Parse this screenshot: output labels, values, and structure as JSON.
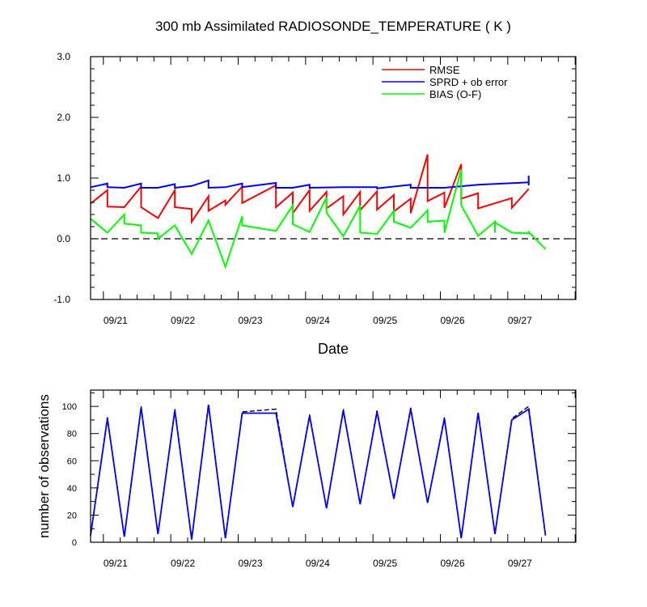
{
  "chart_data": [
    {
      "type": "line",
      "title": "300 mb Assimilated RADIOSONDE_TEMPERATURE ( K )",
      "xlabel": "Date",
      "ylabel": "",
      "ylim": [
        -1.0,
        3.0
      ],
      "xlim": [
        0,
        7.2
      ],
      "x_tick_labels": [
        "09/21",
        "09/22",
        "09/23",
        "09/24",
        "09/25",
        "09/26",
        "09/27"
      ],
      "y_tick_labels": [
        "3.0",
        "2.0",
        "1.0",
        "0.0",
        "-1.0"
      ],
      "legend": "top-right",
      "zero_line": true,
      "series": [
        {
          "name": "RMSE",
          "color": "#ff0000",
          "points": [
            [
              0,
              0.58
            ],
            [
              0.25,
              0.8
            ],
            [
              0.25,
              0.53
            ],
            [
              0.5,
              0.52
            ],
            [
              0.75,
              0.86
            ],
            [
              0.75,
              0.52
            ],
            [
              1.0,
              0.34
            ],
            [
              1.25,
              0.8
            ],
            [
              1.25,
              0.52
            ],
            [
              1.5,
              0.49
            ],
            [
              1.5,
              0.28
            ],
            [
              1.75,
              0.7
            ],
            [
              1.75,
              0.46
            ],
            [
              2.0,
              0.63
            ],
            [
              2.0,
              0.56
            ],
            [
              2.25,
              0.86
            ],
            [
              2.25,
              0.59
            ],
            [
              2.75,
              0.88
            ],
            [
              2.75,
              0.52
            ],
            [
              3.0,
              0.76
            ],
            [
              3.0,
              0.42
            ],
            [
              3.25,
              0.8
            ],
            [
              3.25,
              0.46
            ],
            [
              3.5,
              0.77
            ],
            [
              3.5,
              0.5
            ],
            [
              3.75,
              0.7
            ],
            [
              3.75,
              0.4
            ],
            [
              4.0,
              0.77
            ],
            [
              4.0,
              0.47
            ],
            [
              4.25,
              0.78
            ],
            [
              4.25,
              0.48
            ],
            [
              4.5,
              0.72
            ],
            [
              4.5,
              0.45
            ],
            [
              4.75,
              0.66
            ],
            [
              4.75,
              0.42
            ],
            [
              5.0,
              1.39
            ],
            [
              5.0,
              0.62
            ],
            [
              5.25,
              0.76
            ],
            [
              5.25,
              0.51
            ],
            [
              5.5,
              1.23
            ],
            [
              5.5,
              0.66
            ],
            [
              5.75,
              0.75
            ],
            [
              5.75,
              0.5
            ],
            [
              6.25,
              0.67
            ],
            [
              6.25,
              0.51
            ],
            [
              6.5,
              0.82
            ]
          ]
        },
        {
          "name": "SPRD + ob error",
          "color": "#0000ff",
          "points": [
            [
              0,
              0.85
            ],
            [
              0.25,
              0.91
            ],
            [
              0.25,
              0.85
            ],
            [
              0.5,
              0.84
            ],
            [
              0.75,
              0.91
            ],
            [
              0.75,
              0.84
            ],
            [
              1.0,
              0.84
            ],
            [
              1.25,
              0.9
            ],
            [
              1.25,
              0.84
            ],
            [
              1.5,
              0.87
            ],
            [
              1.75,
              0.96
            ],
            [
              1.75,
              0.84
            ],
            [
              2.0,
              0.85
            ],
            [
              2.25,
              0.91
            ],
            [
              2.25,
              0.85
            ],
            [
              2.75,
              0.92
            ],
            [
              2.75,
              0.84
            ],
            [
              3.0,
              0.84
            ],
            [
              3.25,
              0.89
            ],
            [
              3.25,
              0.84
            ],
            [
              3.75,
              0.85
            ],
            [
              4.25,
              0.85
            ],
            [
              4.25,
              0.83
            ],
            [
              4.75,
              0.89
            ],
            [
              4.75,
              0.84
            ],
            [
              5.25,
              0.84
            ],
            [
              5.75,
              0.89
            ],
            [
              6.5,
              0.93
            ],
            [
              6.5,
              0.88
            ],
            [
              6.5,
              1.04
            ]
          ]
        },
        {
          "name": "BIAS (O-F)",
          "color": "#00ff00",
          "points": [
            [
              0,
              0.33
            ],
            [
              0.25,
              0.1
            ],
            [
              0.5,
              0.4
            ],
            [
              0.5,
              0.25
            ],
            [
              0.75,
              0.22
            ],
            [
              0.75,
              0.1
            ],
            [
              1.0,
              0.09
            ],
            [
              1.0,
              0.0
            ],
            [
              1.25,
              0.22
            ],
            [
              1.5,
              -0.25
            ],
            [
              1.75,
              0.3
            ],
            [
              2.0,
              -0.46
            ],
            [
              2.25,
              0.37
            ],
            [
              2.25,
              0.22
            ],
            [
              2.75,
              0.13
            ],
            [
              3.0,
              0.55
            ],
            [
              3.0,
              0.24
            ],
            [
              3.25,
              0.11
            ],
            [
              3.5,
              0.68
            ],
            [
              3.5,
              0.43
            ],
            [
              3.75,
              0.04
            ],
            [
              4.0,
              0.55
            ],
            [
              4.0,
              0.1
            ],
            [
              4.25,
              0.08
            ],
            [
              4.5,
              0.46
            ],
            [
              4.5,
              0.28
            ],
            [
              4.75,
              0.18
            ],
            [
              5.0,
              0.47
            ],
            [
              5.0,
              0.28
            ],
            [
              5.25,
              0.3
            ],
            [
              5.25,
              0.1
            ],
            [
              5.5,
              1.14
            ],
            [
              5.5,
              0.55
            ],
            [
              5.75,
              0.05
            ],
            [
              6.0,
              0.28
            ],
            [
              6.0,
              0.1
            ],
            [
              6.0,
              0.27
            ],
            [
              6.25,
              0.1
            ],
            [
              6.5,
              0.09
            ],
            [
              6.5,
              0.11
            ],
            [
              6.75,
              -0.17
            ]
          ]
        }
      ]
    },
    {
      "type": "line",
      "title": "",
      "xlabel": "",
      "ylabel": "number of observations",
      "ylim": [
        0,
        112
      ],
      "xlim": [
        0,
        7.2
      ],
      "x_tick_labels": [
        "09/21",
        "09/22",
        "09/23",
        "09/24",
        "09/25",
        "09/26",
        "09/27"
      ],
      "y_tick_labels": [
        "0",
        "20",
        "40",
        "60",
        "80",
        "100"
      ],
      "series": [
        {
          "name": "",
          "color": "#000000",
          "dashed": true,
          "points": [
            [
              0,
              5
            ],
            [
              0.25,
              92
            ],
            [
              0.5,
              4
            ],
            [
              0.75,
              100
            ],
            [
              1.0,
              6
            ],
            [
              1.25,
              98
            ],
            [
              1.5,
              2
            ],
            [
              1.75,
              102
            ],
            [
              2.0,
              3
            ],
            [
              2.25,
              96
            ],
            [
              2.75,
              98
            ],
            [
              3.0,
              26
            ],
            [
              3.25,
              94
            ],
            [
              3.5,
              25
            ],
            [
              3.75,
              98
            ],
            [
              4.0,
              28
            ],
            [
              4.25,
              97
            ],
            [
              4.5,
              32
            ],
            [
              4.75,
              99
            ],
            [
              5.0,
              29
            ],
            [
              5.25,
              92
            ],
            [
              5.5,
              3
            ],
            [
              5.75,
              96
            ],
            [
              6.0,
              6
            ],
            [
              6.25,
              91
            ],
            [
              6.5,
              100
            ],
            [
              6.75,
              5
            ]
          ]
        },
        {
          "name": "",
          "color": "#0000ff",
          "dashed": false,
          "points": [
            [
              0,
              5
            ],
            [
              0.25,
              91
            ],
            [
              0.5,
              4
            ],
            [
              0.75,
              99
            ],
            [
              1.0,
              6
            ],
            [
              1.25,
              97
            ],
            [
              1.5,
              2
            ],
            [
              1.75,
              101
            ],
            [
              2.0,
              3
            ],
            [
              2.25,
              95
            ],
            [
              2.75,
              95
            ],
            [
              3.0,
              26
            ],
            [
              3.25,
              93
            ],
            [
              3.5,
              25
            ],
            [
              3.75,
              97
            ],
            [
              4.0,
              28
            ],
            [
              4.25,
              96
            ],
            [
              4.5,
              32
            ],
            [
              4.75,
              98
            ],
            [
              5.0,
              29
            ],
            [
              5.25,
              91
            ],
            [
              5.5,
              3
            ],
            [
              5.75,
              95
            ],
            [
              6.0,
              6
            ],
            [
              6.25,
              90
            ],
            [
              6.5,
              98
            ],
            [
              6.75,
              5
            ]
          ]
        }
      ]
    }
  ]
}
